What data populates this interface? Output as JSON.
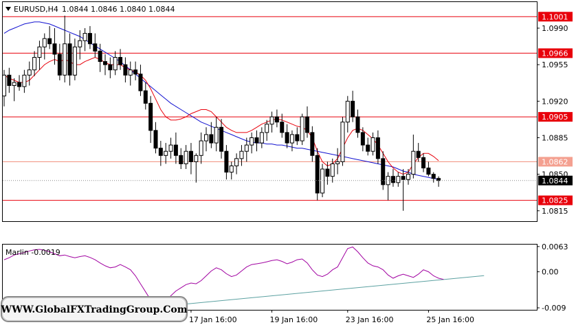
{
  "header": {
    "symbol_text": "EURUSD,H4",
    "ohlc_text": "1.0844 1.0846 1.0840 1.0844",
    "menu_icon": "triangle-down-icon"
  },
  "indicator": {
    "label": "Marlin -0.0019"
  },
  "watermark": {
    "text": "WWW.GlobalFXTradingGroup.Com"
  },
  "colors": {
    "background": "#ffffff",
    "level_line": "#e8000b",
    "level_line_light": "#f08c78",
    "level_label_bg": "#e8000b",
    "level_label_light_bg": "#f4a090",
    "current_price_bg": "#000000",
    "ma_fast": "#e8000b",
    "ma_slow": "#1010d0",
    "oscillator": "#a000a0",
    "trendline": "#5aa0a0",
    "candle": "#000000",
    "grid_frame": "#000000"
  },
  "chart_data": [
    {
      "type": "candlestick",
      "title": "EURUSD,H4",
      "ylim": [
        1.0805,
        1.1015
      ],
      "y_ticks": [
        "1.0990",
        "1.0955",
        "1.0920",
        "1.0885",
        "1.0850",
        "1.0815"
      ],
      "y_tick_values": [
        1.099,
        1.0955,
        1.092,
        1.0885,
        1.085,
        1.0815
      ],
      "x_tick_labels": [
        "17 Jan 16:00",
        "19 Jan 16:00",
        "23 Jan 16:00",
        "25 Jan 16:00"
      ],
      "x_tick_bar_index": [
        37,
        53,
        68,
        84
      ],
      "levels": [
        {
          "value": 1.1001,
          "label": "1.1001",
          "style": "strong"
        },
        {
          "value": 1.0966,
          "label": "1.0966",
          "style": "strong"
        },
        {
          "value": 1.0905,
          "label": "1.0905",
          "style": "strong"
        },
        {
          "value": 1.0862,
          "label": "1.0862",
          "style": "light"
        },
        {
          "value": 1.0825,
          "label": "1.0825",
          "style": "strong"
        }
      ],
      "current_price": {
        "value": 1.0844,
        "label": "1.0844"
      },
      "candles": [
        [
          1.0925,
          1.095,
          1.0915,
          1.0945
        ],
        [
          1.0945,
          1.0952,
          1.0928,
          1.0935
        ],
        [
          1.0935,
          1.0942,
          1.092,
          1.0938
        ],
        [
          1.0938,
          1.0945,
          1.093,
          1.0934
        ],
        [
          1.0934,
          1.095,
          1.0928,
          1.0945
        ],
        [
          1.0945,
          1.0958,
          1.0935,
          1.095
        ],
        [
          1.095,
          1.0968,
          1.0944,
          1.0962
        ],
        [
          1.0962,
          1.0978,
          1.095,
          1.0972
        ],
        [
          1.0972,
          1.0985,
          1.096,
          1.098
        ],
        [
          1.098,
          1.0992,
          1.097,
          1.0975
        ],
        [
          1.0975,
          1.099,
          1.0955,
          1.0965
        ],
        [
          1.0965,
          1.0975,
          1.094,
          1.0945
        ],
        [
          1.0945,
          1.1002,
          1.0938,
          1.0975
        ],
        [
          1.0975,
          1.0985,
          1.0935,
          1.0945
        ],
        [
          1.0945,
          1.098,
          1.094,
          1.0972
        ],
        [
          1.0972,
          1.0988,
          1.096,
          1.0978
        ],
        [
          1.0978,
          1.099,
          1.0968,
          1.0985
        ],
        [
          1.0985,
          1.0992,
          1.097,
          1.0975
        ],
        [
          1.0975,
          1.0985,
          1.0962,
          1.0968
        ],
        [
          1.0968,
          1.0975,
          1.0948,
          1.0958
        ],
        [
          1.0958,
          1.0965,
          1.0945,
          1.0955
        ],
        [
          1.0955,
          1.0962,
          1.0942,
          1.095
        ],
        [
          1.095,
          1.0968,
          1.0945,
          1.0962
        ],
        [
          1.0962,
          1.097,
          1.095,
          1.0955
        ],
        [
          1.0955,
          1.0962,
          1.0938,
          1.0945
        ],
        [
          1.0945,
          1.0958,
          1.0935,
          1.095
        ],
        [
          1.095,
          1.0958,
          1.094,
          1.0946
        ],
        [
          1.0946,
          1.0955,
          1.0925,
          1.093
        ],
        [
          1.093,
          1.0938,
          1.0912,
          1.0918
        ],
        [
          1.0918,
          1.0925,
          1.088,
          1.0892
        ],
        [
          1.0892,
          1.09,
          1.087,
          1.0875
        ],
        [
          1.0875,
          1.0882,
          1.0858,
          1.0868
        ],
        [
          1.0868,
          1.088,
          1.086,
          1.0872
        ],
        [
          1.0872,
          1.0885,
          1.0865,
          1.0878
        ],
        [
          1.0878,
          1.089,
          1.086,
          1.0868
        ],
        [
          1.0868,
          1.0875,
          1.0855,
          1.086
        ],
        [
          1.086,
          1.0878,
          1.0855,
          1.0872
        ],
        [
          1.0872,
          1.088,
          1.085,
          1.0862
        ],
        [
          1.0862,
          1.087,
          1.0842,
          1.0868
        ],
        [
          1.0868,
          1.089,
          1.086,
          1.0882
        ],
        [
          1.0882,
          1.0895,
          1.0872,
          1.0888
        ],
        [
          1.0888,
          1.09,
          1.0875,
          1.088
        ],
        [
          1.088,
          1.0905,
          1.0872,
          1.0895
        ],
        [
          1.0895,
          1.0903,
          1.0865,
          1.0872
        ],
        [
          1.0872,
          1.0878,
          1.0845,
          1.0852
        ],
        [
          1.0852,
          1.0862,
          1.0845,
          1.0858
        ],
        [
          1.0858,
          1.087,
          1.085,
          1.0865
        ],
        [
          1.0865,
          1.0878,
          1.0858,
          1.0872
        ],
        [
          1.0872,
          1.0885,
          1.0862,
          1.0878
        ],
        [
          1.0878,
          1.089,
          1.087,
          1.0885
        ],
        [
          1.0885,
          1.0892,
          1.0872,
          1.088
        ],
        [
          1.088,
          1.0895,
          1.0875,
          1.089
        ],
        [
          1.089,
          1.0902,
          1.0882,
          1.0898
        ],
        [
          1.0898,
          1.091,
          1.089,
          1.0905
        ],
        [
          1.0905,
          1.0912,
          1.0895,
          1.09
        ],
        [
          1.09,
          1.0908,
          1.0885,
          1.089
        ],
        [
          1.089,
          1.0898,
          1.0875,
          1.088
        ],
        [
          1.088,
          1.0892,
          1.0872,
          1.0888
        ],
        [
          1.0888,
          1.0895,
          1.0878,
          1.0882
        ],
        [
          1.0882,
          1.0908,
          1.0878,
          1.0905
        ],
        [
          1.0905,
          1.0915,
          1.0885,
          1.089
        ],
        [
          1.089,
          1.0896,
          1.0862,
          1.0868
        ],
        [
          1.0868,
          1.0875,
          1.0825,
          1.0832
        ],
        [
          1.0832,
          1.086,
          1.0828,
          1.0855
        ],
        [
          1.0855,
          1.0862,
          1.084,
          1.0848
        ],
        [
          1.0848,
          1.0865,
          1.0842,
          1.086
        ],
        [
          1.086,
          1.0875,
          1.085,
          1.0862
        ],
        [
          1.0862,
          1.0905,
          1.0858,
          1.09
        ],
        [
          1.09,
          1.0925,
          1.089,
          1.092
        ],
        [
          1.092,
          1.093,
          1.09,
          1.0905
        ],
        [
          1.0905,
          1.0912,
          1.0885,
          1.089
        ],
        [
          1.089,
          1.0895,
          1.0872,
          1.0878
        ],
        [
          1.0878,
          1.0885,
          1.0868,
          1.0872
        ],
        [
          1.0872,
          1.089,
          1.0868,
          1.0885
        ],
        [
          1.0885,
          1.0892,
          1.086,
          1.0865
        ],
        [
          1.0865,
          1.0872,
          1.0835,
          1.084
        ],
        [
          1.084,
          1.0852,
          1.0825,
          1.0848
        ],
        [
          1.0848,
          1.0855,
          1.0838,
          1.0842
        ],
        [
          1.0842,
          1.0852,
          1.0838,
          1.0848
        ],
        [
          1.0848,
          1.0855,
          1.0815,
          1.0845
        ],
        [
          1.0845,
          1.0855,
          1.084,
          1.085
        ],
        [
          1.085,
          1.0888,
          1.0846,
          1.0872
        ],
        [
          1.0872,
          1.088,
          1.0862,
          1.0866
        ],
        [
          1.0866,
          1.087,
          1.0852,
          1.0856
        ],
        [
          1.0856,
          1.0862,
          1.0848,
          1.085
        ],
        [
          1.085,
          1.0852,
          1.0842,
          1.0846
        ],
        [
          1.0846,
          1.0848,
          1.0838,
          1.0844
        ]
      ],
      "ma_fast": [
        1.0945,
        1.0942,
        1.094,
        1.0938,
        1.0938,
        1.094,
        1.0945,
        1.095,
        1.0955,
        1.0958,
        1.096,
        1.0958,
        1.096,
        1.0958,
        1.0955,
        1.0955,
        1.0958,
        1.096,
        1.0962,
        1.096,
        1.0957,
        1.0955,
        1.0955,
        1.0955,
        1.0952,
        1.095,
        1.0948,
        1.0945,
        1.094,
        1.0932,
        1.0922,
        1.0912,
        1.0905,
        1.0902,
        1.0902,
        1.0903,
        1.0905,
        1.0908,
        1.091,
        1.0912,
        1.0912,
        1.091,
        1.0905,
        1.09,
        1.0895,
        1.0892,
        1.089,
        1.089,
        1.089,
        1.0892,
        1.0895,
        1.0898,
        1.09,
        1.0902,
        1.0903,
        1.0902,
        1.09,
        1.0898,
        1.0896,
        1.0895,
        1.0892,
        1.0885,
        1.0872,
        1.0862,
        1.0858,
        1.086,
        1.0865,
        1.0875,
        1.0885,
        1.0892,
        1.0894,
        1.0892,
        1.0888,
        1.0884,
        1.0878,
        1.087,
        1.0862,
        1.0856,
        1.0852,
        1.085,
        1.0852,
        1.086,
        1.0866,
        1.087,
        1.087,
        1.0867,
        1.0863
      ],
      "ma_slow": [
        1.0985,
        1.0988,
        1.099,
        1.0992,
        1.0994,
        1.0995,
        1.0996,
        1.0996,
        1.0995,
        1.0994,
        1.0992,
        1.099,
        1.0988,
        1.0986,
        1.0984,
        1.0982,
        1.0979,
        1.0976,
        1.0973,
        1.097,
        1.0967,
        1.0964,
        1.0961,
        1.0958,
        1.0954,
        1.095,
        1.0946,
        1.0942,
        1.0938,
        1.0934,
        1.093,
        1.0926,
        1.0922,
        1.0918,
        1.0915,
        1.0912,
        1.0909,
        1.0906,
        1.0903,
        1.09,
        1.0898,
        1.0896,
        1.0894,
        1.0892,
        1.089,
        1.0888,
        1.0886,
        1.0884,
        1.0882,
        1.0881,
        1.088,
        1.088,
        1.0879,
        1.0879,
        1.0878,
        1.0878,
        1.0877,
        1.0876,
        1.0875,
        1.0875,
        1.0874,
        1.0873,
        1.0872,
        1.0871,
        1.087,
        1.0869,
        1.0868,
        1.0867,
        1.0866,
        1.0865,
        1.0864,
        1.0863,
        1.0862,
        1.0861,
        1.086,
        1.0859,
        1.0858,
        1.0857,
        1.0855,
        1.0853,
        1.0852,
        1.085,
        1.0849,
        1.0848,
        1.0847,
        1.0846,
        1.0845
      ]
    },
    {
      "type": "line",
      "title": "Marlin -0.0019",
      "ylim": [
        -0.0095,
        0.0068
      ],
      "y_ticks": [
        "0.0063",
        "0.00",
        "-0.009"
      ],
      "y_tick_values": [
        0.0063,
        0.0,
        -0.009
      ],
      "series": [
        {
          "name": "Marlin",
          "values": [
            0.003,
            0.0035,
            0.0042,
            0.0045,
            0.0048,
            0.0052,
            0.0055,
            0.0056,
            0.0054,
            0.005,
            0.0045,
            0.004,
            0.0042,
            0.0038,
            0.0035,
            0.0038,
            0.004,
            0.0036,
            0.003,
            0.0022,
            0.0015,
            0.001,
            0.0012,
            0.0018,
            0.0012,
            0.0005,
            -0.001,
            -0.003,
            -0.005,
            -0.007,
            -0.0082,
            -0.0078,
            -0.007,
            -0.006,
            -0.0048,
            -0.004,
            -0.0032,
            -0.0028,
            -0.003,
            -0.0022,
            -0.001,
            0.0002,
            0.001,
            0.0005,
            -0.0005,
            -0.0012,
            -0.0008,
            0.0002,
            0.0012,
            0.0018,
            0.002,
            0.0022,
            0.0025,
            0.0028,
            0.003,
            0.0026,
            0.002,
            0.0024,
            0.003,
            0.0032,
            0.0022,
            0.0005,
            -0.0008,
            -0.0012,
            -0.0006,
            0.0005,
            0.0012,
            0.0035,
            0.0058,
            0.0062,
            0.005,
            0.0035,
            0.0022,
            0.0015,
            0.0012,
            0.0005,
            -0.0008,
            -0.0016,
            -0.001,
            -0.0006,
            -0.001,
            -0.0014,
            -0.0006,
            0.0005,
            0.0,
            -0.001,
            -0.0016,
            -0.0019
          ]
        }
      ],
      "trendline": {
        "from": [
          28,
          -0.009
        ],
        "to": [
          88,
          -0.0018
        ],
        "extend_to": 95
      }
    }
  ]
}
